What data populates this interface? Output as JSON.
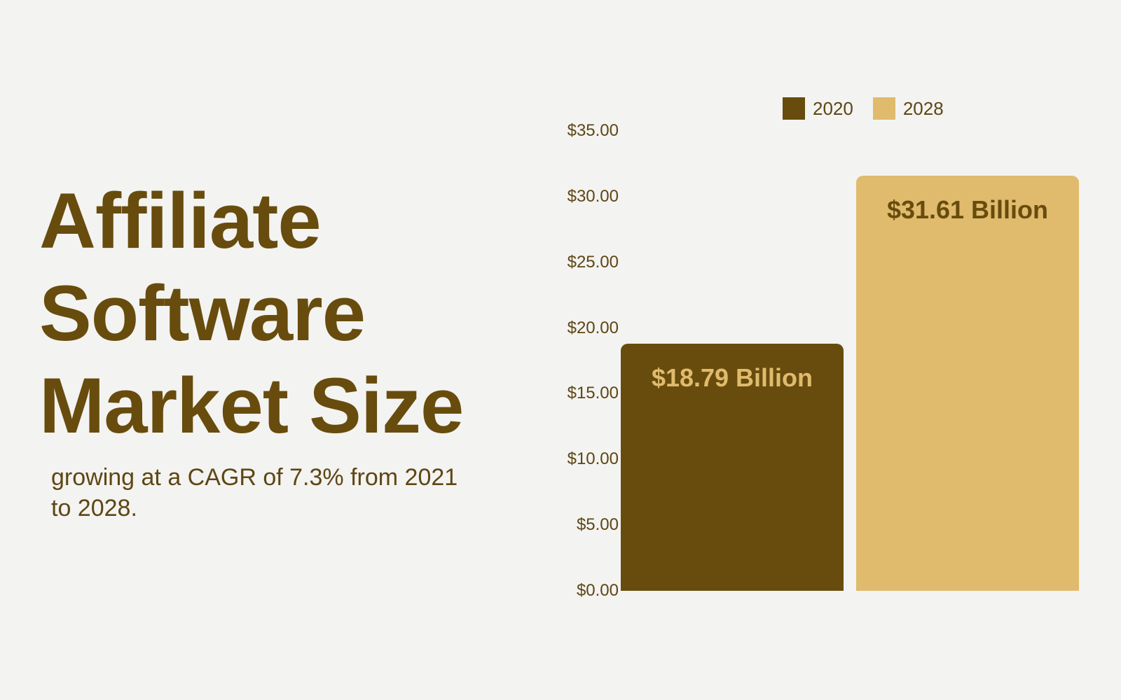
{
  "title": {
    "lines": [
      "Affiliate",
      "Software",
      "Market Size"
    ]
  },
  "subtitle": "growing at a CAGR of 7.3% from 2021 to 2028.",
  "colors": {
    "background": "#f3f3f1",
    "text": "#684c0d",
    "series_2020": "#684c0d",
    "series_2028": "#e0bb6d"
  },
  "chart_data": {
    "type": "bar",
    "title": "Affiliate Software Market Size",
    "subtitle": "growing at a CAGR of 7.3% from 2021 to 2028.",
    "xlabel": "",
    "ylabel": "",
    "categories": [
      "2020",
      "2028"
    ],
    "series": [
      {
        "name": "2020",
        "values": [
          18.79
        ],
        "color": "#684c0d",
        "data_label": "$18.79 Billion"
      },
      {
        "name": "2028",
        "values": [
          31.61
        ],
        "color": "#e0bb6d",
        "data_label": "$31.61 Billion"
      }
    ],
    "values": [
      18.79,
      31.61
    ],
    "units": "USD Billion",
    "ylim": [
      0,
      35
    ],
    "y_ticks": [
      0,
      5,
      10,
      15,
      20,
      25,
      30,
      35
    ],
    "y_tick_labels": [
      "$0.00",
      "$5.00",
      "$10.00",
      "$15.00",
      "$20.00",
      "$25.00",
      "$30.00",
      "$35.00"
    ],
    "grid": false,
    "legend": {
      "position": "top",
      "entries": [
        "2020",
        "2028"
      ]
    }
  }
}
